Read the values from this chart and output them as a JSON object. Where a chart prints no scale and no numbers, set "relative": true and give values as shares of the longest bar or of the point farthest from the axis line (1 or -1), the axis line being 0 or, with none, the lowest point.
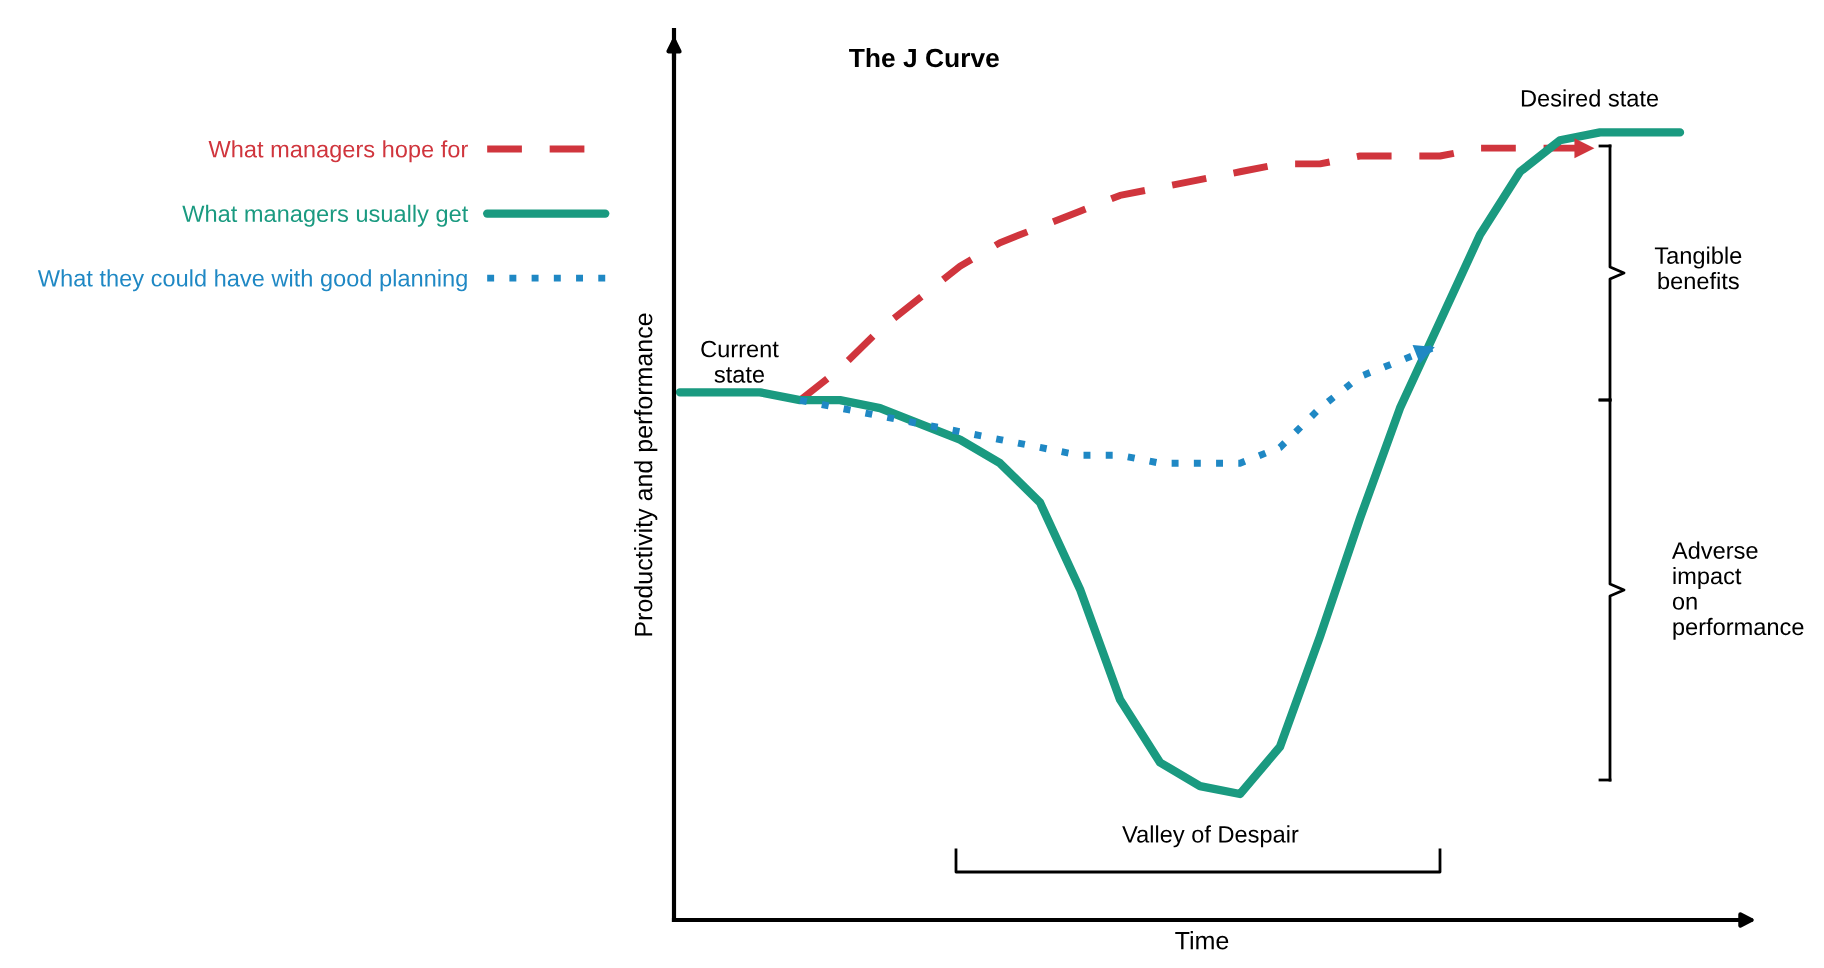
{
  "chart_data": {
    "type": "line",
    "title": "The J Curve",
    "xlabel": "Time",
    "ylabel": "Productivity and performance",
    "relative": true,
    "categories": [
      null,
      null,
      null,
      null,
      null,
      null,
      null,
      null,
      null,
      null,
      null,
      null,
      null,
      null,
      null,
      null,
      null,
      null,
      null,
      null,
      null,
      null,
      null,
      null,
      null,
      null
    ],
    "series": [
      {
        "name": "What managers hope for",
        "color": "#d0353d",
        "line_style": "dashed",
        "values": [
          null,
          null,
          null,
          0.66,
          0.7,
          0.75,
          0.79,
          0.83,
          0.86,
          0.88,
          0.9,
          0.92,
          0.93,
          0.94,
          0.95,
          0.96,
          0.96,
          0.97,
          0.97,
          0.97,
          0.98,
          0.98,
          0.98,
          0.98,
          null,
          null
        ]
      },
      {
        "name": "What managers usually get",
        "color": "#1a9a80",
        "line_style": "solid",
        "values": [
          0.67,
          0.67,
          0.67,
          0.66,
          0.66,
          0.65,
          0.63,
          0.61,
          0.58,
          0.53,
          0.42,
          0.28,
          0.2,
          0.17,
          0.16,
          0.22,
          0.36,
          0.51,
          0.65,
          0.76,
          0.87,
          0.95,
          0.99,
          1.0,
          1.0,
          1.0
        ]
      },
      {
        "name": "What they could have with good planning",
        "color": "#1f88c4",
        "line_style": "dotted",
        "values": [
          null,
          null,
          null,
          0.66,
          0.65,
          0.64,
          0.63,
          0.62,
          0.61,
          0.6,
          0.59,
          0.59,
          0.58,
          0.58,
          0.58,
          0.6,
          0.65,
          0.69,
          0.71,
          0.73,
          null,
          null,
          null,
          null,
          null,
          null
        ]
      }
    ],
    "legend": "left",
    "marker": "none",
    "annotations": [
      "Current state",
      "Desired state",
      "Tangible benefits",
      "Adverse impact on performance",
      "Valley of Despair"
    ]
  }
}
